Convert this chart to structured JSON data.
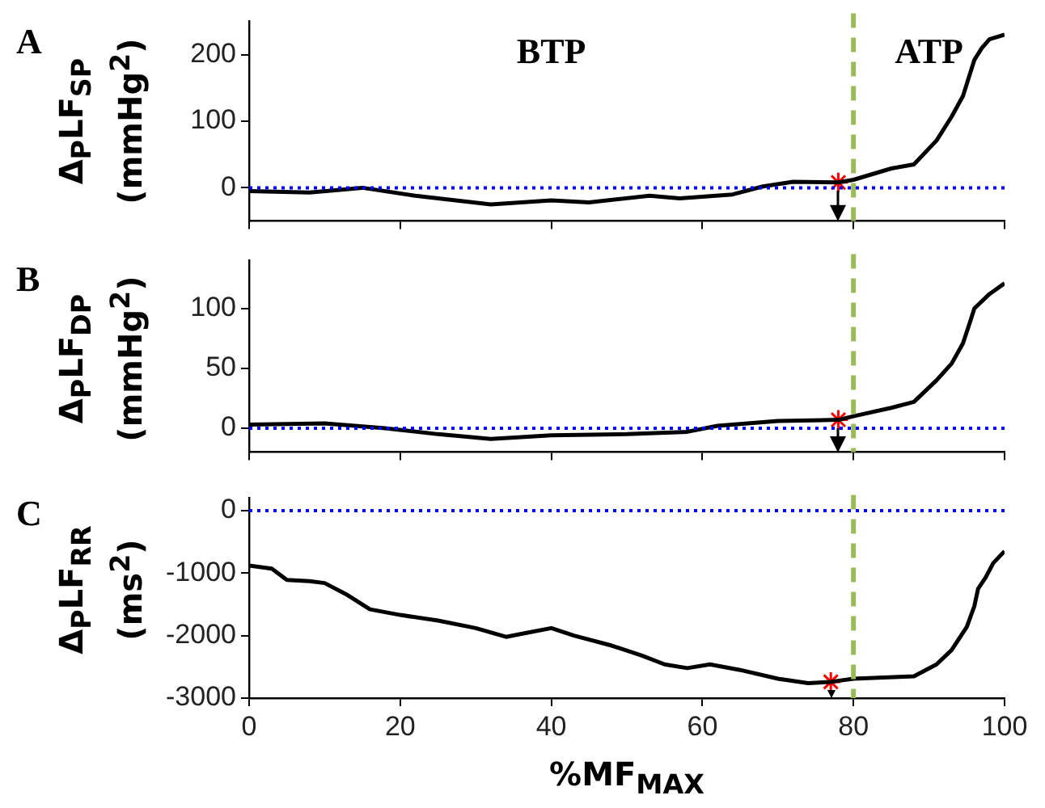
{
  "chart_data": [
    {
      "type": "line",
      "title": "A",
      "ylabel": "Δ$_{P}$LF$_{SP}$ (mmHg$^{2}$)",
      "xlim": [
        0,
        100
      ],
      "xticks": [
        0,
        20,
        40,
        60,
        80,
        100
      ],
      "ylim": [
        -50,
        250
      ],
      "yticks": [
        0,
        100,
        200
      ],
      "tick_labels": "y",
      "grid": false,
      "legend": false,
      "series": [
        {
          "type": "line",
          "color": "#000000",
          "marker": "none",
          "x": [
            0,
            8,
            15,
            22,
            32,
            40,
            45,
            53,
            57,
            64,
            68,
            72,
            78,
            80,
            85,
            88,
            91,
            93,
            94.5,
            95.5,
            96,
            97,
            98,
            100
          ],
          "values": [
            -5,
            -7,
            0,
            -12,
            -25,
            -19,
            -22,
            -12,
            -16,
            -10,
            2,
            9,
            8,
            12,
            29,
            35,
            71,
            107,
            138,
            174,
            192,
            210,
            223,
            230
          ]
        },
        {
          "type": "scatter",
          "color": "#ff0000",
          "marker": "cross",
          "x": [
            78
          ],
          "values": [
            8
          ]
        }
      ],
      "ref_lines": [
        {
          "axis": "x",
          "value": 80,
          "color": "#9bbb59",
          "line_style": "dashed"
        },
        {
          "axis": "y",
          "value": 0,
          "color": "#0000ff",
          "line_style": "dotted"
        }
      ],
      "annotations": [
        "BTP",
        "ATP"
      ]
    },
    {
      "type": "line",
      "title": "B",
      "ylabel": "Δ$_{P}$LF$_{DP}$ (mmHg$^{2}$)",
      "xlim": [
        0,
        100
      ],
      "xticks": [
        0,
        20,
        40,
        60,
        80,
        100
      ],
      "ylim": [
        -20,
        140
      ],
      "yticks": [
        0,
        50,
        100
      ],
      "tick_labels": "y",
      "grid": false,
      "legend": false,
      "series": [
        {
          "type": "line",
          "color": "#000000",
          "marker": "none",
          "x": [
            0,
            10,
            18,
            25,
            32,
            40,
            50,
            58,
            62,
            70,
            78,
            80,
            85,
            88,
            91,
            93,
            94.5,
            95.5,
            96,
            98,
            100
          ],
          "values": [
            3,
            4,
            0,
            -5,
            -9,
            -6,
            -5,
            -3,
            2,
            6,
            7,
            10,
            17,
            22,
            40,
            54,
            71,
            90,
            100,
            112,
            121
          ]
        },
        {
          "type": "scatter",
          "color": "#ff0000",
          "marker": "cross",
          "x": [
            78
          ],
          "values": [
            7
          ]
        }
      ],
      "ref_lines": [
        {
          "axis": "x",
          "value": 80,
          "color": "#9bbb59",
          "line_style": "dashed"
        },
        {
          "axis": "y",
          "value": 0,
          "color": "#0000ff",
          "line_style": "dotted"
        }
      ]
    },
    {
      "type": "line",
      "title": "C",
      "xlabel": "%MF$_{MAX}$",
      "ylabel": "Δ$_{P}$LF$_{RR}$ (ms$^{2}$)",
      "xlim": [
        0,
        100
      ],
      "xticks": [
        0,
        20,
        40,
        60,
        80,
        100
      ],
      "ylim": [
        -3000,
        200
      ],
      "yticks": [
        -3000,
        -2000,
        -1000,
        0
      ],
      "grid": false,
      "legend": false,
      "series": [
        {
          "type": "line",
          "color": "#000000",
          "marker": "none",
          "x": [
            0,
            3,
            5,
            8,
            10,
            13,
            16,
            20,
            25,
            30,
            34,
            37,
            40,
            43,
            48,
            52,
            55,
            58,
            61,
            65,
            70,
            74,
            77,
            80,
            84,
            88,
            91,
            93,
            95,
            96,
            96.5,
            97.5,
            98.5,
            100
          ],
          "values": [
            -880,
            -930,
            -1110,
            -1130,
            -1160,
            -1350,
            -1580,
            -1670,
            -1760,
            -1880,
            -2020,
            -1950,
            -1880,
            -2000,
            -2160,
            -2320,
            -2460,
            -2520,
            -2460,
            -2550,
            -2690,
            -2760,
            -2740,
            -2690,
            -2670,
            -2650,
            -2460,
            -2230,
            -1860,
            -1530,
            -1250,
            -1070,
            -840,
            -650
          ]
        },
        {
          "type": "scatter",
          "color": "#ff0000",
          "marker": "cross",
          "x": [
            77
          ],
          "values": [
            -2740
          ]
        }
      ],
      "ref_lines": [
        {
          "axis": "x",
          "value": 80,
          "color": "#9bbb59",
          "line_style": "dashed"
        },
        {
          "axis": "y",
          "value": 0,
          "color": "#0000ff",
          "line_style": "dotted"
        }
      ]
    }
  ]
}
